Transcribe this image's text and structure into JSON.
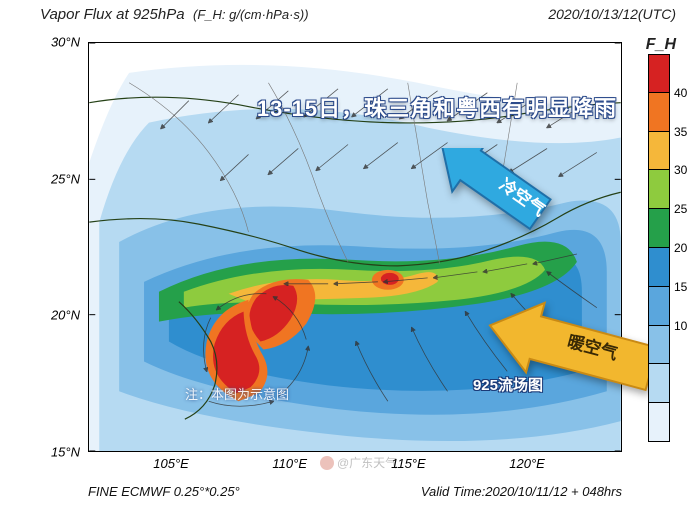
{
  "title": {
    "main": "Vapor Flux at 925hPa",
    "sub": "(F_H: g/(cm·hPa·s))"
  },
  "timestamp": "2020/10/13/12(UTC)",
  "bottom": {
    "left": "FINE ECMWF 0.25°*0.25°",
    "right": "Valid Time:2020/10/11/12 + 048hrs"
  },
  "axes": {
    "y_label_suffix": "°N",
    "x_label_suffix": "°E",
    "y_ticks": [
      30,
      25,
      20,
      15
    ],
    "x_ticks": [
      105,
      110,
      115,
      120
    ],
    "xlim": [
      101.5,
      124
    ],
    "ylim": [
      15,
      30
    ]
  },
  "colorbar": {
    "title": "F_H",
    "labels": [
      40,
      35,
      30,
      25,
      20,
      15,
      10
    ],
    "colors_top_to_bottom": [
      "#d62222",
      "#f07522",
      "#f5b73a",
      "#8ecb3e",
      "#25a04a",
      "#2f8ecf",
      "#5aa6dd",
      "#88c1e8",
      "#b6daf2",
      "#e7f2fb"
    ]
  },
  "background_color": "#ffffff",
  "map_colors": {
    "coast_line": "#254117",
    "wind_barb": "#333333"
  },
  "annotations": {
    "banner": "13-15日，珠三角和粤西有明显降雨",
    "cold_arrow": {
      "label": "冷空气",
      "fill": "#2fa9e0",
      "edge": "#1f6fa8"
    },
    "warm_arrow": {
      "label": "暖空气",
      "fill": "#f2b72e",
      "edge": "#c98a14"
    },
    "bottom_left_note": "注：本图为示意图",
    "bottom_right_label": "925流场图",
    "watermark": "@广东天气"
  },
  "flux_field": {
    "description": "Filled-contour vapor flux magnitude (F_H) with wind streamlines. Strong cyclonic wrap SW of Guangdong coast; frontal band along ~22-24N from Guangxi through Pearl River Delta into Fujian coast.",
    "levels": [
      10,
      15,
      20,
      25,
      30,
      35,
      40
    ],
    "level_colors": {
      "10": "#e7f2fb",
      "15": "#b6daf2",
      "20": "#5aa6dd",
      "25": "#2f8ecf",
      "30": "#25a04a",
      "35": "#8ecb3e",
      "40_lo": "#f5b73a",
      "40_hi": "#d62222"
    }
  }
}
